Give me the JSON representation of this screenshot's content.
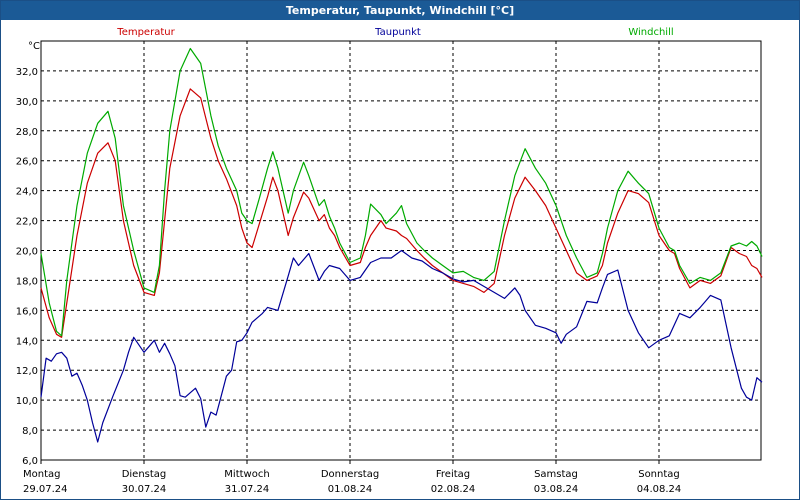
{
  "window": {
    "title": "Temperatur, Taupunkt, Windchill [°C]"
  },
  "chart_data": {
    "type": "line",
    "ylabel": "°C",
    "ylim": [
      6,
      34
    ],
    "y_ticks": [
      "6,0",
      "8,0",
      "10,0",
      "12,0",
      "14,0",
      "16,0",
      "18,0",
      "20,0",
      "22,0",
      "24,0",
      "26,0",
      "28,0",
      "30,0",
      "32,0"
    ],
    "y_tick_values": [
      6,
      8,
      10,
      12,
      14,
      16,
      18,
      20,
      22,
      24,
      26,
      28,
      30,
      32
    ],
    "x_range": [
      0,
      7.0
    ],
    "x_ticks": [
      {
        "day": "Montag",
        "date": "29.07.24"
      },
      {
        "day": "Dienstag",
        "date": "30.07.24"
      },
      {
        "day": "Mittwoch",
        "date": "31.07.24"
      },
      {
        "day": "Donnerstag",
        "date": "01.08.24"
      },
      {
        "day": "Freitag",
        "date": "02.08.24"
      },
      {
        "day": "Samstag",
        "date": "03.08.24"
      },
      {
        "day": "Sonntag",
        "date": "04.08.24"
      }
    ],
    "grid": true,
    "series": [
      {
        "name": "Temperatur",
        "color": "#cc0000",
        "x": [
          0,
          0.08,
          0.15,
          0.2,
          0.25,
          0.35,
          0.45,
          0.55,
          0.65,
          0.72,
          0.8,
          0.9,
          1,
          1.1,
          1.15,
          1.2,
          1.25,
          1.35,
          1.45,
          1.55,
          1.65,
          1.72,
          1.8,
          1.9,
          1.95,
          2,
          2.05,
          2.12,
          2.2,
          2.25,
          2.3,
          2.4,
          2.45,
          2.55,
          2.6,
          2.7,
          2.75,
          2.8,
          2.85,
          2.9,
          3,
          3.1,
          3.15,
          3.2,
          3.3,
          3.35,
          3.45,
          3.5,
          3.55,
          3.65,
          3.72,
          3.8,
          3.9,
          4,
          4.1,
          4.2,
          4.3,
          4.4,
          4.5,
          4.6,
          4.7,
          4.8,
          4.9,
          5,
          5.1,
          5.2,
          5.3,
          5.4,
          5.45,
          5.5,
          5.6,
          5.7,
          5.8,
          5.9,
          6,
          6.1,
          6.15,
          6.2,
          6.3,
          6.4,
          6.5,
          6.6,
          6.7,
          6.78,
          6.85,
          6.9,
          6.95,
          7.0
        ],
        "y": [
          17.5,
          15.5,
          14.4,
          14.2,
          16.5,
          21,
          24.5,
          26.5,
          27.2,
          26,
          22,
          19,
          17.2,
          17,
          18.5,
          22,
          25.5,
          29,
          30.8,
          30.2,
          27.5,
          26,
          24.8,
          23,
          21.5,
          20.5,
          20.2,
          21.8,
          23.6,
          24.9,
          24,
          21,
          22.2,
          23.9,
          23.5,
          22,
          22.4,
          21.5,
          21,
          20.2,
          19,
          19.2,
          20.2,
          21,
          22,
          21.5,
          21.3,
          21,
          20.8,
          20,
          19.5,
          19,
          18.5,
          18,
          17.8,
          17.6,
          17.2,
          17.8,
          21,
          23.5,
          24.9,
          24,
          23,
          21.5,
          20,
          18.5,
          18,
          18.3,
          19,
          20.5,
          22.5,
          24,
          23.8,
          23.2,
          21,
          20,
          19.8,
          18.8,
          17.5,
          18,
          17.8,
          18.3,
          20.2,
          19.8,
          19.6,
          19,
          18.8,
          18.2
        ]
      },
      {
        "name": "Taupunkt",
        "color": "#000099",
        "x": [
          0,
          0.05,
          0.1,
          0.15,
          0.2,
          0.25,
          0.3,
          0.35,
          0.4,
          0.45,
          0.5,
          0.55,
          0.6,
          0.7,
          0.8,
          0.85,
          0.9,
          1,
          1.05,
          1.1,
          1.15,
          1.2,
          1.25,
          1.3,
          1.35,
          1.4,
          1.45,
          1.5,
          1.55,
          1.6,
          1.65,
          1.7,
          1.75,
          1.8,
          1.85,
          1.9,
          1.95,
          2,
          2.05,
          2.1,
          2.15,
          2.2,
          2.3,
          2.4,
          2.45,
          2.5,
          2.6,
          2.7,
          2.75,
          2.8,
          2.9,
          3,
          3.1,
          3.2,
          3.3,
          3.4,
          3.5,
          3.6,
          3.7,
          3.8,
          3.9,
          4,
          4.1,
          4.2,
          4.3,
          4.4,
          4.5,
          4.6,
          4.65,
          4.7,
          4.8,
          4.9,
          5,
          5.05,
          5.1,
          5.2,
          5.3,
          5.4,
          5.45,
          5.5,
          5.6,
          5.7,
          5.8,
          5.9,
          6,
          6.1,
          6.2,
          6.3,
          6.4,
          6.45,
          6.5,
          6.6,
          6.7,
          6.8,
          6.85,
          6.9,
          6.95,
          7.0
        ],
        "y": [
          10.2,
          12.8,
          12.6,
          13.1,
          13.2,
          12.8,
          11.6,
          11.8,
          11,
          10,
          8.5,
          7.2,
          8.5,
          10.3,
          12,
          13.2,
          14.2,
          13.2,
          13.6,
          14,
          13.2,
          13.8,
          13.1,
          12.3,
          10.3,
          10.2,
          10.5,
          10.8,
          10.1,
          8.2,
          9.2,
          9,
          10.3,
          11.6,
          12,
          13.9,
          14,
          14.5,
          15.2,
          15.5,
          15.8,
          16.2,
          16,
          18.3,
          19.5,
          19,
          19.8,
          18,
          18.6,
          19,
          18.8,
          18,
          18.2,
          19.2,
          19.5,
          19.5,
          20,
          19.5,
          19.3,
          18.8,
          18.5,
          18.1,
          17.9,
          18,
          17.6,
          17.2,
          16.8,
          17.5,
          17,
          16,
          15,
          14.8,
          14.5,
          13.8,
          14.4,
          14.9,
          16.6,
          16.5,
          17.5,
          18.4,
          18.7,
          16,
          14.5,
          13.5,
          14,
          14.3,
          15.8,
          15.5,
          16.2,
          16.6,
          17,
          16.7,
          13.5,
          10.8,
          10.2,
          10,
          11.5,
          11.2
        ]
      },
      {
        "name": "Windchill",
        "color": "#00aa00",
        "x": [
          0,
          0.08,
          0.15,
          0.2,
          0.25,
          0.35,
          0.45,
          0.55,
          0.65,
          0.72,
          0.8,
          0.9,
          1,
          1.1,
          1.15,
          1.2,
          1.25,
          1.35,
          1.45,
          1.55,
          1.65,
          1.72,
          1.8,
          1.9,
          1.95,
          2,
          2.05,
          2.12,
          2.2,
          2.25,
          2.3,
          2.4,
          2.45,
          2.55,
          2.6,
          2.7,
          2.75,
          2.8,
          2.85,
          2.9,
          3,
          3.1,
          3.15,
          3.2,
          3.3,
          3.35,
          3.45,
          3.5,
          3.55,
          3.65,
          3.72,
          3.8,
          3.9,
          4,
          4.1,
          4.2,
          4.3,
          4.4,
          4.5,
          4.6,
          4.7,
          4.8,
          4.9,
          5,
          5.1,
          5.2,
          5.3,
          5.4,
          5.45,
          5.5,
          5.6,
          5.7,
          5.8,
          5.9,
          6,
          6.1,
          6.15,
          6.2,
          6.3,
          6.4,
          6.5,
          6.6,
          6.7,
          6.78,
          6.85,
          6.9,
          6.95,
          7.0
        ],
        "y": [
          19.8,
          16.5,
          14.6,
          14.3,
          18,
          23,
          26.5,
          28.5,
          29.3,
          27.5,
          23,
          20,
          17.5,
          17.2,
          19,
          24,
          28,
          32,
          33.5,
          32.5,
          29,
          27,
          25.5,
          24,
          22.5,
          22,
          21.8,
          23.5,
          25.5,
          26.6,
          25.5,
          22.5,
          24,
          25.9,
          25,
          23,
          23.4,
          22.3,
          21.5,
          20.5,
          19.2,
          19.5,
          21,
          23.1,
          22.4,
          21.8,
          22.5,
          23,
          21.8,
          20.5,
          20,
          19.5,
          19,
          18.5,
          18.6,
          18.2,
          18,
          18.6,
          22,
          25,
          26.8,
          25.5,
          24.5,
          23,
          21,
          19.5,
          18.2,
          18.5,
          19.8,
          21.5,
          24,
          25.3,
          24.5,
          23.8,
          21.5,
          20.2,
          20,
          19,
          17.8,
          18.2,
          18,
          18.5,
          20.3,
          20.5,
          20.3,
          20.6,
          20.3,
          19.6
        ]
      }
    ]
  }
}
